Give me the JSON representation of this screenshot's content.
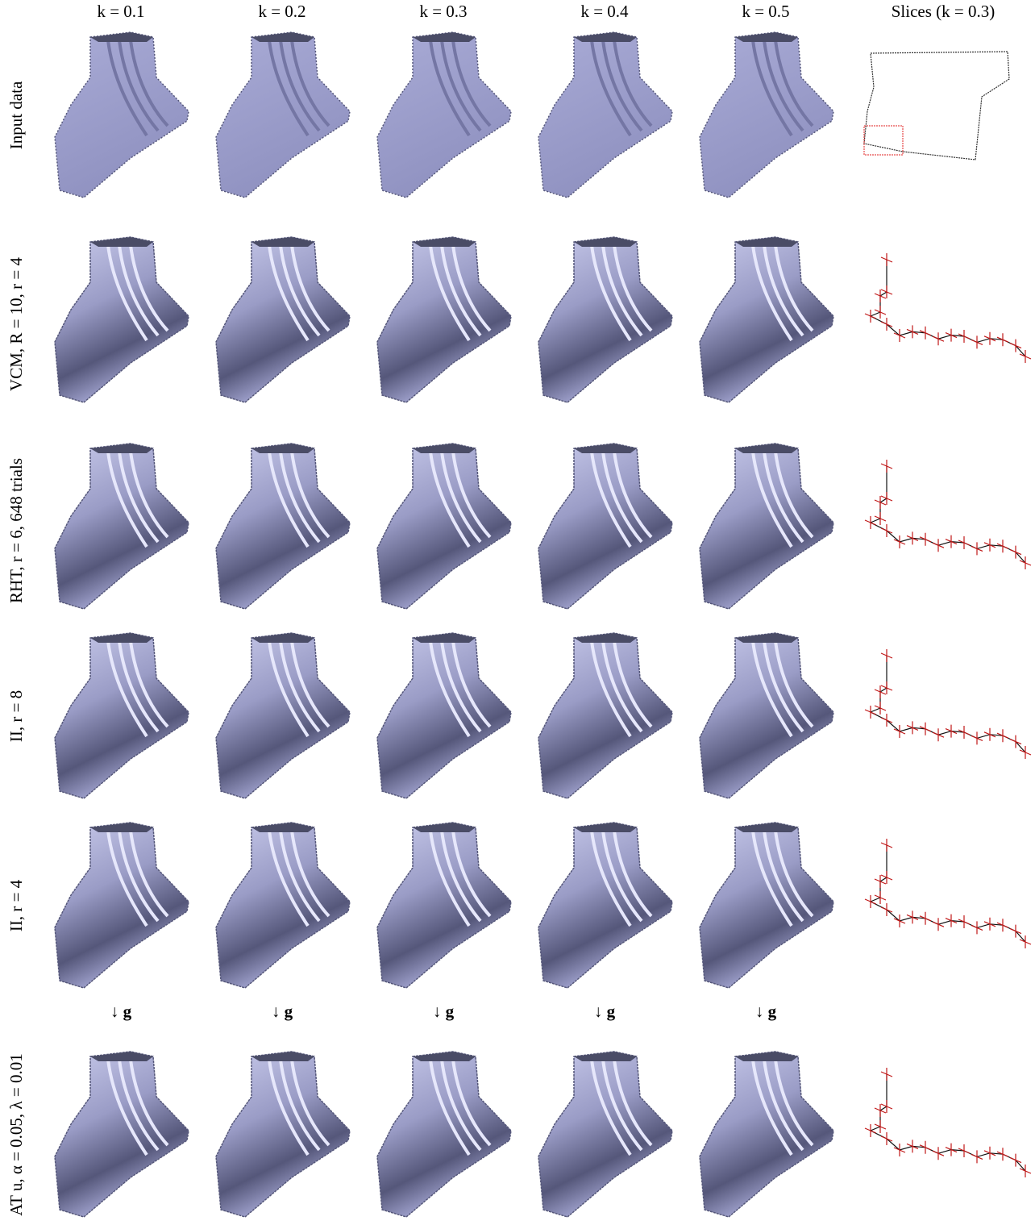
{
  "columns": [
    "k = 0.1",
    "k = 0.2",
    "k = 0.3",
    "k = 0.4",
    "k = 0.5",
    "Slices (k = 0.3)"
  ],
  "rows": [
    "Input data",
    "VCM, R = 10, r = 4",
    "RHT, r = 6, 648 trials",
    "II, r = 8",
    "II, r = 4",
    "AT u, α = 0.05, λ = 0.01"
  ],
  "arrows": [
    "↓ g",
    "↓ g",
    "↓ g",
    "↓ g",
    "↓ g"
  ]
}
